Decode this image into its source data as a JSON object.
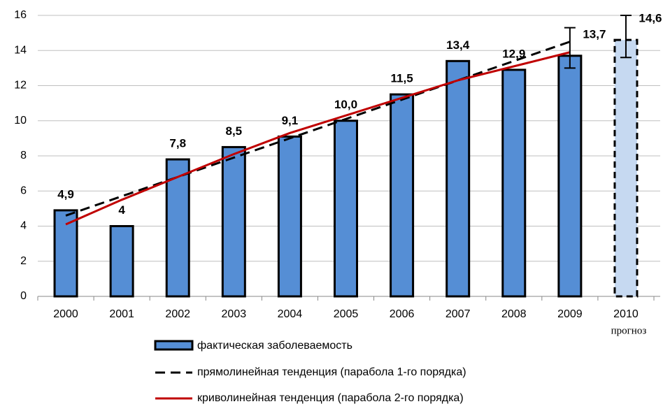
{
  "chart_data": {
    "type": "bar",
    "categories": [
      "2000",
      "2001",
      "2002",
      "2003",
      "2004",
      "2005",
      "2006",
      "2007",
      "2008",
      "2009",
      "2010"
    ],
    "values": [
      4.9,
      4,
      7.8,
      8.5,
      9.1,
      10.0,
      11.5,
      13.4,
      12.9,
      13.7,
      14.6
    ],
    "value_labels": [
      "4,9",
      "4",
      "7,8",
      "8,5",
      "9,1",
      "10,0",
      "11,5",
      "13,4",
      "12,9",
      "13,7",
      "14,6"
    ],
    "colors": [
      "#558ed5",
      "#558ed5",
      "#558ed5",
      "#558ed5",
      "#558ed5",
      "#558ed5",
      "#558ed5",
      "#558ed5",
      "#558ed5",
      "#558ed5",
      "#c6d9f1"
    ],
    "bar_name": "фактическая заболеваемость",
    "series": [
      {
        "name": "прямолинейная тенденция (парабола 1-го порядка)",
        "color": "#000000",
        "style": "dashed",
        "values": [
          4.6,
          5.7,
          6.8,
          7.9,
          9.0,
          10.1,
          11.2,
          12.3,
          13.4,
          14.5,
          null
        ]
      },
      {
        "name": "криволинейная тенденция (парабола 2-го порядка)",
        "color": "#c00000",
        "style": "solid",
        "values": [
          4.1,
          5.5,
          6.8,
          8.1,
          9.3,
          10.3,
          11.3,
          12.3,
          13.1,
          13.9,
          null
        ]
      }
    ],
    "error_bars": [
      {
        "category": "2009",
        "low": 13.0,
        "high": 15.3
      },
      {
        "category": "2010",
        "low": 13.6,
        "high": 16.0
      }
    ],
    "annotation": "прогноз",
    "ylim": [
      0,
      16
    ],
    "yticks": [
      0,
      2,
      4,
      6,
      8,
      10,
      12,
      14,
      16
    ],
    "grid": true,
    "legend": "bottom"
  }
}
